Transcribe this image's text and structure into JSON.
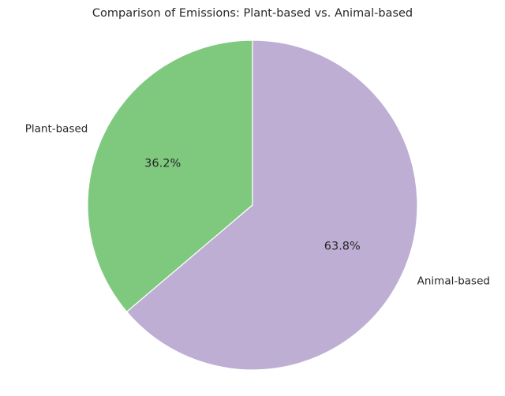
{
  "chart_data": {
    "type": "pie",
    "title": "Comparison of Emissions: Plant-based vs. Animal-based",
    "start_angle_deg": 90,
    "direction": "counterclockwise",
    "slices": [
      {
        "label": "Plant-based",
        "value": 36.2,
        "pct_label": "36.2%",
        "color": "#7fc97f"
      },
      {
        "label": "Animal-based",
        "value": 63.8,
        "pct_label": "63.8%",
        "color": "#beaed4"
      }
    ]
  }
}
